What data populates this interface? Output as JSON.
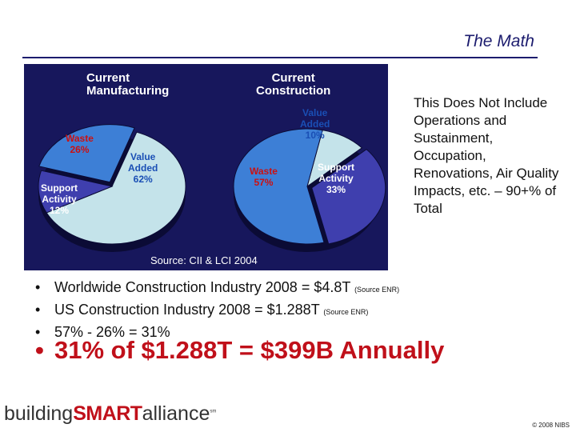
{
  "slide": {
    "title": "The Math"
  },
  "figure": {
    "manufacturing": {
      "heading_line1": "Current",
      "heading_line2": "Manufacturing",
      "slices": [
        {
          "label_line1": "Waste",
          "label_line2": "26%",
          "value": 26,
          "color": "#3d7fd6"
        },
        {
          "label_line1": "Value",
          "label_line2": "Added",
          "label_line3": "62%",
          "value": 62,
          "color": "#c4e3ea"
        },
        {
          "label_line1": "Support",
          "label_line2": "Activity",
          "label_line3": "12%",
          "value": 12,
          "color": "#3f3fae"
        }
      ]
    },
    "construction": {
      "heading_line1": "Current",
      "heading_line2": "Construction",
      "slices": [
        {
          "label_line1": "Value",
          "label_line2": "Added",
          "label_line3": "10%",
          "value": 10,
          "color": "#c4e3ea"
        },
        {
          "label_line1": "Support",
          "label_line2": "Activity",
          "label_line3": "33%",
          "value": 33,
          "color": "#3f3fae"
        },
        {
          "label_line1": "Waste",
          "label_line2": "57%",
          "value": 57,
          "color": "#3d7fd6"
        }
      ]
    },
    "source": "Source: CII & LCI 2004"
  },
  "note": {
    "text": "This Does Not Include Operations and Sustainment, Occupation, Renovations, Air Quality Impacts, etc. – 90+% of Total"
  },
  "bullets": [
    {
      "bullet": "•",
      "text": "Worldwide Construction Industry 2008 = $4.8T",
      "source": "(Source ENR)"
    },
    {
      "bullet": "•",
      "text": "US Construction Industry 2008 = $1.288T",
      "source": "(Source ENR)"
    },
    {
      "bullet": "•",
      "text": "57% - 26% = 31%",
      "source": ""
    }
  ],
  "highlight": {
    "bullet": "•",
    "text": "31% of $1.288T = $399B Annually"
  },
  "footer": {
    "logo_part1": "building",
    "logo_part2": "SMART",
    "logo_part3": "alliance",
    "logo_mark": "sm",
    "copyright": "© 2008 NIBS"
  }
}
